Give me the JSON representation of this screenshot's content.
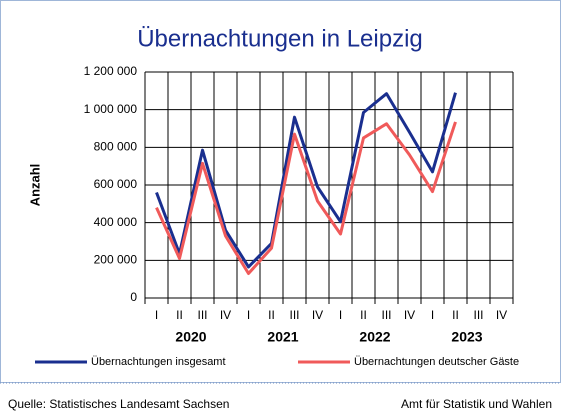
{
  "chart_data": {
    "type": "line",
    "title": "Übernachtungen in Leipzig",
    "y_label": "Anzahl",
    "categories": [
      "I",
      "II",
      "III",
      "IV",
      "I",
      "II",
      "III",
      "IV",
      "I",
      "II",
      "III",
      "IV",
      "I",
      "II",
      "III",
      "IV"
    ],
    "year_labels": [
      "2020",
      "2021",
      "2022",
      "2023"
    ],
    "series": [
      {
        "name": "Übernachtungen insgesamt",
        "color": "#1a2f8f",
        "values": [
          560000,
          235000,
          785000,
          360000,
          165000,
          290000,
          960000,
          590000,
          405000,
          985000,
          1085000,
          880000,
          670000,
          1090000,
          null,
          null
        ]
      },
      {
        "name": "Übernachtungen deutscher Gäste",
        "color": "#f05a5a",
        "values": [
          480000,
          210000,
          715000,
          330000,
          130000,
          265000,
          870000,
          515000,
          340000,
          850000,
          925000,
          760000,
          565000,
          935000,
          null,
          null
        ]
      }
    ],
    "ylim": [
      0,
      1200000
    ],
    "yticks": [
      0,
      {
        "value": 200000,
        "label": "200 000"
      },
      {
        "value": 400000,
        "label": "400 000"
      },
      {
        "value": 600000,
        "label": "600 000"
      },
      {
        "value": 800000,
        "label": "800 000"
      },
      {
        "value": 1000000,
        "label": "1 000 000"
      },
      {
        "value": 1200000,
        "label": "1 200 000"
      }
    ],
    "grid": true,
    "source_left": "Quelle: Statistisches Landesamt Sachsen",
    "source_right": "Amt für Statistik und Wahlen"
  }
}
